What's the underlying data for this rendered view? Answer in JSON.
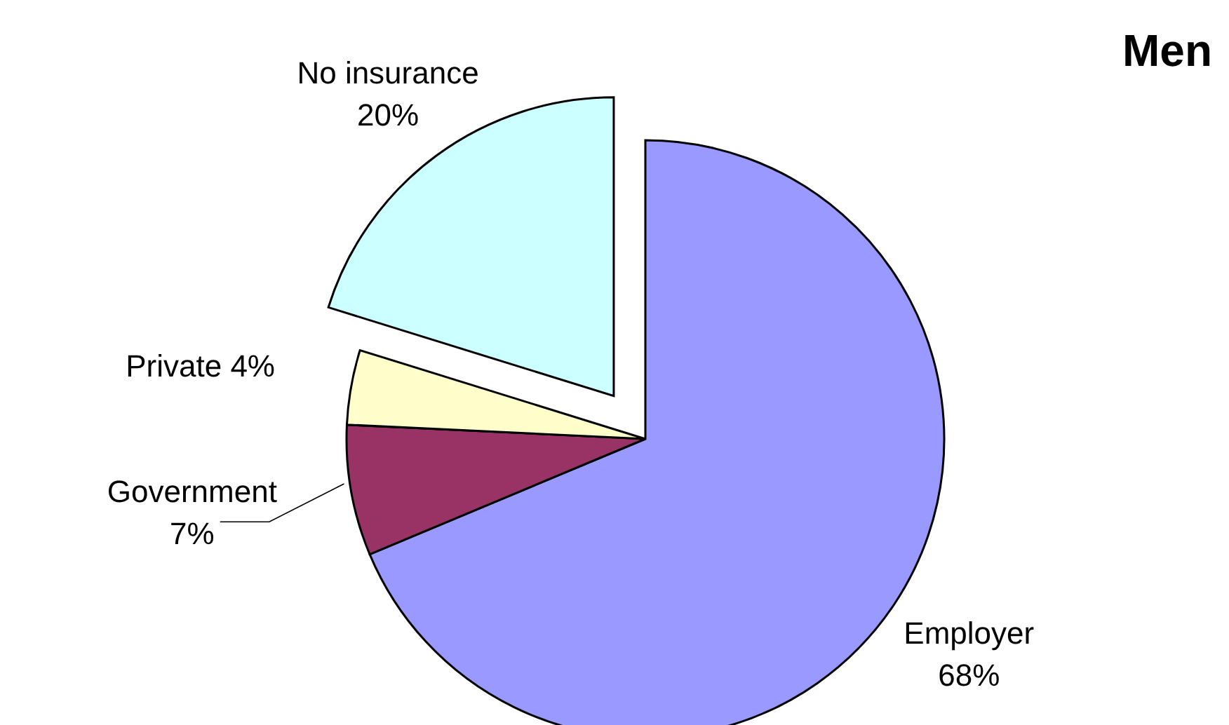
{
  "chart_data": {
    "type": "pie",
    "title": "Men",
    "categories": [
      "Employer",
      "Government",
      "Private",
      "No insurance"
    ],
    "values": [
      68,
      7,
      4,
      20
    ],
    "value_labels": [
      "68%",
      "7%",
      "4%",
      "20%"
    ],
    "colors": [
      "#9999ff",
      "#993366",
      "#ffffcc",
      "#ccffff"
    ]
  }
}
